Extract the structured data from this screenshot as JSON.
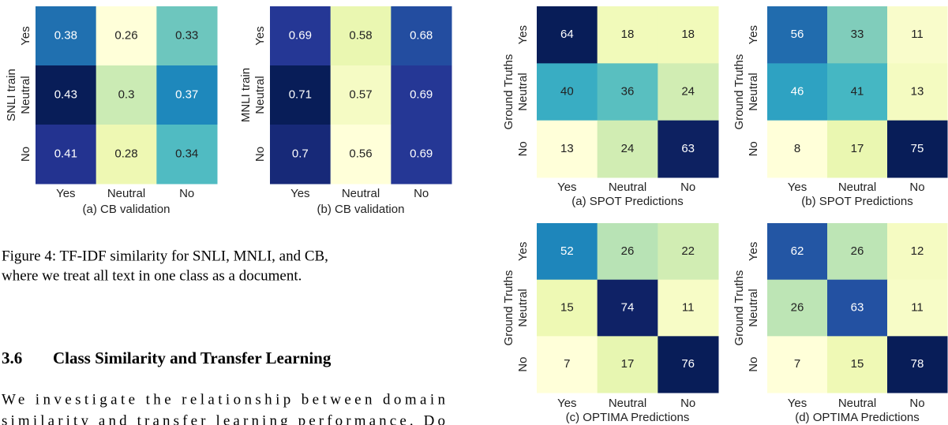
{
  "figures": [
    {
      "y_label": "SNLI train",
      "rows": [
        "Yes",
        "Neutral",
        "No"
      ],
      "cols": [
        "Yes",
        "Neutral",
        "No"
      ],
      "cells": [
        [
          "0.38",
          "0.26",
          "0.33"
        ],
        [
          "0.43",
          "0.3",
          "0.37"
        ],
        [
          "0.41",
          "0.28",
          "0.34"
        ]
      ],
      "caption": "(a) CB validation"
    },
    {
      "y_label": "MNLI train",
      "rows": [
        "Yes",
        "Neutral",
        "No"
      ],
      "cols": [
        "Yes",
        "Neutral",
        "No"
      ],
      "cells": [
        [
          "0.69",
          "0.58",
          "0.68"
        ],
        [
          "0.71",
          "0.57",
          "0.69"
        ],
        [
          "0.7",
          "0.56",
          "0.69"
        ]
      ],
      "caption": "(b) CB validation"
    },
    {
      "y_label": "Ground Truths",
      "rows": [
        "Yes",
        "Neutral",
        "No"
      ],
      "cols": [
        "Yes",
        "Neutral",
        "No"
      ],
      "cells": [
        [
          "64",
          "18",
          "18"
        ],
        [
          "40",
          "36",
          "24"
        ],
        [
          "13",
          "24",
          "63"
        ]
      ],
      "caption": "(a) SPOT Predictions"
    },
    {
      "y_label": "Ground Truths",
      "rows": [
        "Yes",
        "Neutral",
        "No"
      ],
      "cols": [
        "Yes",
        "Neutral",
        "No"
      ],
      "cells": [
        [
          "56",
          "33",
          "11"
        ],
        [
          "46",
          "41",
          "13"
        ],
        [
          "8",
          "17",
          "75"
        ]
      ],
      "caption": "(b) SPOT Predictions"
    },
    {
      "y_label": "Ground Truths",
      "rows": [
        "Yes",
        "Neutral",
        "No"
      ],
      "cols": [
        "Yes",
        "Neutral",
        "No"
      ],
      "cells": [
        [
          "52",
          "26",
          "22"
        ],
        [
          "15",
          "74",
          "11"
        ],
        [
          "7",
          "17",
          "76"
        ]
      ],
      "caption": "(c) OPTIMA Predictions"
    },
    {
      "y_label": "Ground Truths",
      "rows": [
        "Yes",
        "Neutral",
        "No"
      ],
      "cols": [
        "Yes",
        "Neutral",
        "No"
      ],
      "cells": [
        [
          "62",
          "26",
          "12"
        ],
        [
          "26",
          "63",
          "11"
        ],
        [
          "7",
          "15",
          "78"
        ]
      ],
      "caption": "(d) OPTIMA Predictions"
    }
  ],
  "figure_caption": [
    "Figure 4: TF-IDF similarity for SNLI, MNLI, and CB,",
    "where we treat all text in one class as a document."
  ],
  "section": {
    "number": "3.6",
    "title": "Class Similarity and Transfer Learning"
  },
  "paragraph": [
    "We investigate the relationship between domain",
    "similarity and transfer learning performance. Do"
  ]
}
